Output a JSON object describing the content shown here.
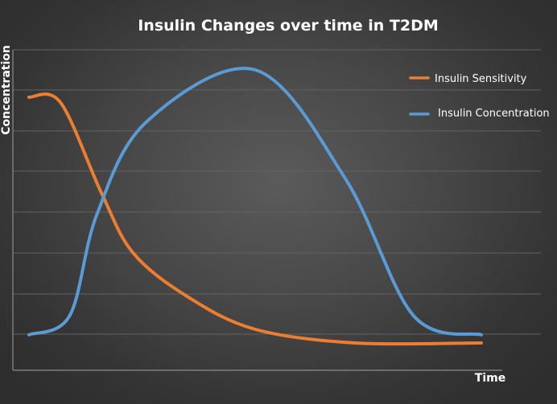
{
  "chart_data": {
    "type": "line",
    "title": "Insulin Changes over time in T2DM",
    "xlabel": "Time",
    "ylabel": "Concentration",
    "grid": true,
    "legend_position": "top-right",
    "series": [
      {
        "name": "Insulin Sensitivity",
        "color": "#ed7d31",
        "points": [
          [
            0.0,
            0.9
          ],
          [
            0.07,
            0.88
          ],
          [
            0.16,
            0.55
          ],
          [
            0.23,
            0.33
          ],
          [
            0.35,
            0.17
          ],
          [
            0.5,
            0.05
          ],
          [
            0.72,
            0.0
          ],
          [
            1.0,
            0.0
          ]
        ]
      },
      {
        "name": "Insulin Concentration",
        "color": "#5b9bd5",
        "points": [
          [
            0.0,
            0.03
          ],
          [
            0.09,
            0.1
          ],
          [
            0.15,
            0.47
          ],
          [
            0.26,
            0.81
          ],
          [
            0.5,
            1.0
          ],
          [
            0.7,
            0.6
          ],
          [
            0.85,
            0.1
          ],
          [
            1.0,
            0.03
          ]
        ]
      }
    ]
  }
}
